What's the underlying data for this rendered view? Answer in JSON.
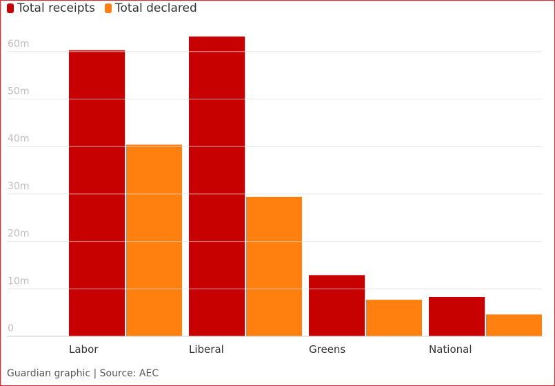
{
  "legend": [
    {
      "label": "Total receipts",
      "color": "#c70000"
    },
    {
      "label": "Total declared",
      "color": "#ff7f0f"
    }
  ],
  "source": "Guardian graphic | Source: AEC",
  "chart_data": {
    "type": "bar",
    "categories": [
      "Labor",
      "Liberal",
      "Greens",
      "National"
    ],
    "series": [
      {
        "name": "Total receipts",
        "color": "#c70000",
        "values": [
          60.3,
          63.2,
          12.9,
          8.3
        ]
      },
      {
        "name": "Total declared",
        "color": "#ff7f0f",
        "values": [
          40.4,
          29.4,
          7.7,
          4.6
        ]
      }
    ],
    "yticks": [
      0,
      10,
      20,
      30,
      40,
      50,
      60
    ],
    "ytick_labels": [
      "0",
      "10m",
      "20m",
      "30m",
      "40m",
      "50m",
      "60m"
    ],
    "ylim": [
      0,
      64
    ],
    "grid": true,
    "legend_position": "top-left",
    "title": "",
    "xlabel": "",
    "ylabel": ""
  }
}
